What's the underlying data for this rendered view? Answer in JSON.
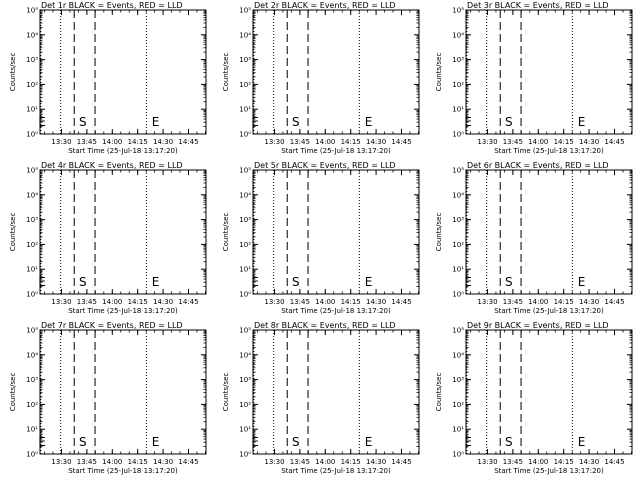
{
  "chart_data": {
    "type": "line",
    "xlabel": "Start Time (25-Jul-18 13:17:20)",
    "ylabel": "Counts/sec",
    "x_ticks": [
      "13:30",
      "13:45",
      "14:00",
      "14:15",
      "14:30",
      "14:45"
    ],
    "x_tick_minutes": [
      12.67,
      27.67,
      42.67,
      57.67,
      72.67,
      87.67
    ],
    "y_scale": "log",
    "y_ticks": [
      "10⁰",
      "10¹",
      "10²",
      "10³",
      "10⁴",
      "10⁵"
    ],
    "ylim": [
      1,
      100000
    ],
    "panels": [
      {
        "title": "Det 1r BLACK = Events, RED = LLD",
        "dotted_lines_min": [
          0.5,
          12.2,
          62.8
        ],
        "dashed_lines_min": [
          20.2,
          32.5
        ],
        "markers": [
          {
            "label": "E",
            "x_min": 1.2
          },
          {
            "label": "S",
            "x_min": 25.3
          },
          {
            "label": "E",
            "x_min": 68.2
          }
        ]
      },
      {
        "title": "Det 2r BLACK = Events, RED = LLD",
        "dotted_lines_min": [
          0.5,
          12.2,
          62.8
        ],
        "dashed_lines_min": [
          20.2,
          32.5
        ],
        "markers": [
          {
            "label": "E",
            "x_min": 1.2
          },
          {
            "label": "S",
            "x_min": 25.3
          },
          {
            "label": "E",
            "x_min": 68.2
          }
        ]
      },
      {
        "title": "Det 3r BLACK = Events, RED = LLD",
        "dotted_lines_min": [
          0.5,
          12.2,
          62.8
        ],
        "dashed_lines_min": [
          20.2,
          32.5
        ],
        "markers": [
          {
            "label": "E",
            "x_min": 1.2
          },
          {
            "label": "S",
            "x_min": 25.3
          },
          {
            "label": "E",
            "x_min": 68.2
          }
        ]
      },
      {
        "title": "Det 4r BLACK = Events, RED = LLD",
        "dotted_lines_min": [
          0.5,
          12.2,
          62.8
        ],
        "dashed_lines_min": [
          20.2,
          32.5
        ],
        "markers": [
          {
            "label": "E",
            "x_min": 1.2
          },
          {
            "label": "S",
            "x_min": 25.3
          },
          {
            "label": "E",
            "x_min": 68.2
          }
        ]
      },
      {
        "title": "Det 5r BLACK = Events, RED = LLD",
        "dotted_lines_min": [
          0.5,
          12.2,
          62.8
        ],
        "dashed_lines_min": [
          20.2,
          32.5
        ],
        "markers": [
          {
            "label": "E",
            "x_min": 1.2
          },
          {
            "label": "S",
            "x_min": 25.3
          },
          {
            "label": "E",
            "x_min": 68.2
          }
        ]
      },
      {
        "title": "Det 6r BLACK = Events, RED = LLD",
        "dotted_lines_min": [
          0.5,
          12.2,
          62.8
        ],
        "dashed_lines_min": [
          20.2,
          32.5
        ],
        "markers": [
          {
            "label": "E",
            "x_min": 1.2
          },
          {
            "label": "S",
            "x_min": 25.3
          },
          {
            "label": "E",
            "x_min": 68.2
          }
        ]
      },
      {
        "title": "Det 7r BLACK = Events, RED = LLD",
        "dotted_lines_min": [
          0.5,
          12.2,
          62.8
        ],
        "dashed_lines_min": [
          20.2,
          32.5
        ],
        "markers": [
          {
            "label": "E",
            "x_min": 1.2
          },
          {
            "label": "S",
            "x_min": 25.3
          },
          {
            "label": "E",
            "x_min": 68.2
          }
        ]
      },
      {
        "title": "Det 8r BLACK = Events, RED = LLD",
        "dotted_lines_min": [
          0.5,
          12.2,
          62.8
        ],
        "dashed_lines_min": [
          20.2,
          32.5
        ],
        "markers": [
          {
            "label": "E",
            "x_min": 1.2
          },
          {
            "label": "S",
            "x_min": 25.3
          },
          {
            "label": "E",
            "x_min": 68.2
          }
        ]
      },
      {
        "title": "Det 9r BLACK = Events, RED = LLD",
        "dotted_lines_min": [
          0.5,
          12.2,
          62.8
        ],
        "dashed_lines_min": [
          20.2,
          32.5
        ],
        "markers": [
          {
            "label": "E",
            "x_min": 1.2
          },
          {
            "label": "S",
            "x_min": 25.3
          },
          {
            "label": "E",
            "x_min": 68.2
          }
        ]
      }
    ]
  }
}
